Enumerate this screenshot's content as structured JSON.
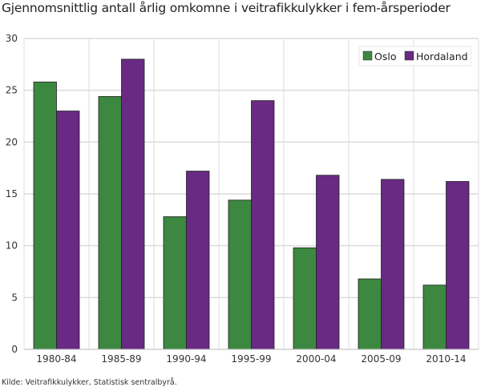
{
  "chart_data": {
    "type": "bar",
    "title": "Gjennomsnittlig antall årlig omkomne i veitrafikkulykker i fem-årsperioder",
    "xlabel": "",
    "ylabel": "",
    "categories": [
      "1980-84",
      "1985-89",
      "1990-94",
      "1995-99",
      "2000-04",
      "2005-09",
      "2010-14"
    ],
    "series": [
      {
        "name": "Oslo",
        "color": "#3d8840",
        "values": [
          25.8,
          24.4,
          12.8,
          14.4,
          9.8,
          6.8,
          6.2
        ]
      },
      {
        "name": "Hordaland",
        "color": "#682a82",
        "values": [
          23.0,
          28.0,
          17.2,
          24.0,
          16.8,
          16.4,
          16.2
        ]
      }
    ],
    "ylim": [
      0,
      30
    ],
    "yticks": [
      0,
      5,
      10,
      15,
      20,
      25,
      30
    ],
    "grid": true,
    "legend_position": "top-right"
  },
  "source": "Kilde: Veitrafikkulykker, Statistisk sentralbyrå."
}
